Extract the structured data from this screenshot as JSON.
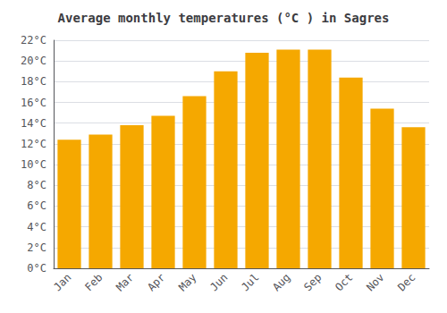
{
  "chart_data": {
    "type": "bar",
    "title": "Average monthly temperatures (°C ) in Sagres",
    "categories": [
      "Jan",
      "Feb",
      "Mar",
      "Apr",
      "May",
      "Jun",
      "Jul",
      "Aug",
      "Sep",
      "Oct",
      "Nov",
      "Dec"
    ],
    "values": [
      12.4,
      12.9,
      13.8,
      14.7,
      16.6,
      19.0,
      20.8,
      21.1,
      21.1,
      18.4,
      15.4,
      13.6
    ],
    "color": "#F5A800",
    "ylim": [
      0,
      22
    ],
    "yticks": [
      {
        "value": 0,
        "label": "0°C"
      },
      {
        "value": 2,
        "label": "2°C"
      },
      {
        "value": 4,
        "label": "4°C"
      },
      {
        "value": 6,
        "label": "6°C"
      },
      {
        "value": 8,
        "label": "8°C"
      },
      {
        "value": 10,
        "label": "10°C"
      },
      {
        "value": 12,
        "label": "12°C"
      },
      {
        "value": 14,
        "label": "14°C"
      },
      {
        "value": 16,
        "label": "16°C"
      },
      {
        "value": 18,
        "label": "18°C"
      },
      {
        "value": 20,
        "label": "20°C"
      },
      {
        "value": 22,
        "label": "22°C"
      }
    ],
    "grid": true
  }
}
